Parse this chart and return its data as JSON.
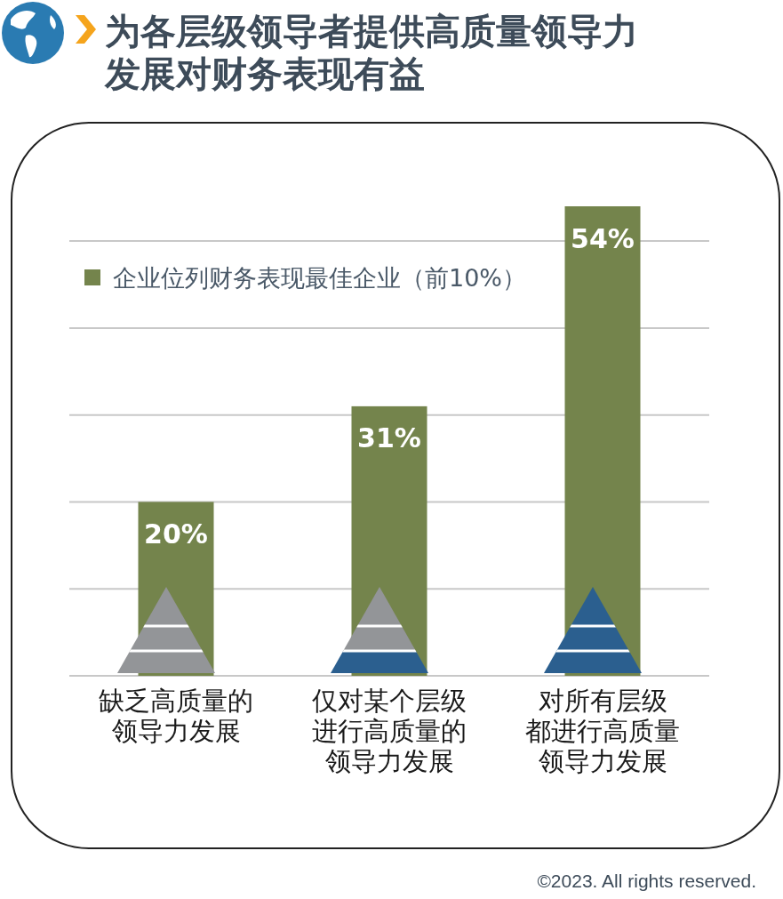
{
  "chart_data": {
    "type": "bar",
    "title": "为各层级领导者提供高质量领导力发展对财务表现有益",
    "categories": [
      "缺乏高质量的领导力发展",
      "仅对某个层级进行高质量的领导力发展",
      "对所有层级都进行高质量领导力发展"
    ],
    "series": [
      {
        "name": "企业位列财务表现最佳企业（前10%）",
        "color": "#74844c",
        "values": [
          20,
          31,
          54
        ],
        "value_labels": [
          "20%",
          "31%",
          "54%"
        ]
      }
    ],
    "yticks": [
      {
        "value": 0,
        "label": null
      },
      {
        "value": 10,
        "label": null
      },
      {
        "value": 20,
        "label": null
      },
      {
        "value": 30,
        "label": null
      },
      {
        "value": 40,
        "label": null
      },
      {
        "value": 50,
        "label": null
      }
    ],
    "tick_labels": "x",
    "grid": "y",
    "legend": "top left",
    "annotations": [
      "©2023. All rights reserved."
    ]
  }
}
